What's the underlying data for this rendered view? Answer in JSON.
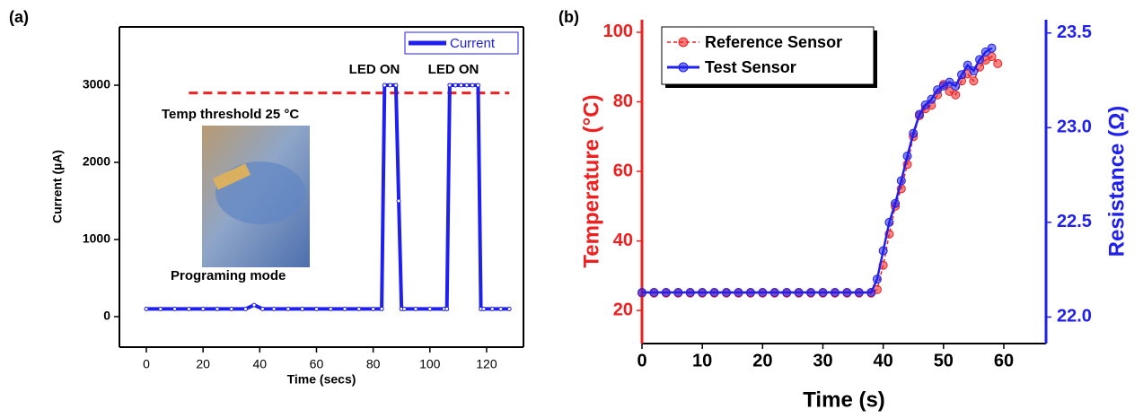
{
  "chart_data": [
    {
      "type": "line",
      "panel_label": "(a)",
      "x_label": "Time (secs)",
      "y_label": "Current (µA)",
      "xlim": [
        -9.5,
        133
      ],
      "ylim": [
        -395,
        3756
      ],
      "xticks": [
        0,
        20,
        40,
        60,
        80,
        100,
        120
      ],
      "yticks": [
        0,
        1000,
        2000,
        3000
      ],
      "series": [
        {
          "name": "Current",
          "color": "#2020ee",
          "x": [
            0,
            5,
            10,
            15,
            20,
            25,
            30,
            35,
            38,
            41,
            45,
            50,
            55,
            60,
            65,
            70,
            75,
            80,
            83,
            84,
            86,
            88,
            89,
            90,
            91,
            95,
            100,
            105,
            106,
            107,
            109,
            111,
            113,
            115,
            117,
            118,
            119,
            122,
            125,
            128
          ],
          "values": [
            100,
            100,
            100,
            100,
            100,
            100,
            100,
            100,
            150,
            100,
            100,
            100,
            100,
            100,
            100,
            100,
            100,
            100,
            100,
            3000,
            3000,
            3000,
            1500,
            100,
            100,
            100,
            100,
            100,
            100,
            3000,
            3000,
            3000,
            3000,
            3000,
            3000,
            100,
            100,
            100,
            100,
            100
          ]
        }
      ],
      "reference_line": {
        "value": 2900,
        "x": [
          15,
          128
        ],
        "color": "#ee2020"
      },
      "annotations": [
        "LED ON",
        "LED ON",
        "Temp threshold 25 °C",
        "Programing mode"
      ],
      "legend": "upper right"
    },
    {
      "type": "line",
      "panel_label": "(b)",
      "x_label": "Time (s)",
      "y_label": "Temperature (°C)",
      "y2_label": "Resistance (Ω)",
      "xlim": [
        0,
        67
      ],
      "ylim": [
        10.5,
        103.6
      ],
      "y2lim": [
        21.86,
        23.57
      ],
      "xticks": [
        0,
        10,
        20,
        30,
        40,
        50,
        60
      ],
      "yticks": [
        20,
        40,
        60,
        80,
        100
      ],
      "y2ticks": [
        {
          "value": 22,
          "label": "22.0"
        },
        {
          "value": 22.5,
          "label": "22.5"
        },
        {
          "value": 23,
          "label": "23.0"
        },
        {
          "value": 23.5,
          "label": "23.5"
        }
      ],
      "series": [
        {
          "name": "Reference Sensor",
          "color": "#ee2020",
          "x": [
            0,
            2,
            4,
            6,
            8,
            10,
            12,
            14,
            16,
            18,
            20,
            22,
            24,
            26,
            28,
            30,
            32,
            34,
            36,
            38,
            39,
            40,
            41,
            42,
            43,
            44,
            45,
            46,
            47,
            48,
            49,
            50,
            51,
            52,
            53,
            54,
            55,
            56,
            57,
            58,
            59
          ],
          "values": [
            25,
            25,
            25,
            25,
            25,
            25,
            25,
            25,
            25,
            25,
            25,
            25,
            25,
            25,
            25,
            25,
            25,
            25,
            25,
            25,
            26,
            33,
            42,
            50,
            55,
            62,
            70,
            76,
            78,
            79,
            82,
            85,
            83,
            82,
            86,
            88,
            86,
            90,
            92,
            93,
            91
          ]
        },
        {
          "name": "Test Sensor",
          "color": "#2020ee",
          "axis": "y2",
          "x": [
            0,
            2,
            4,
            6,
            8,
            10,
            12,
            14,
            16,
            18,
            20,
            22,
            24,
            26,
            28,
            30,
            32,
            34,
            36,
            38,
            39,
            40,
            41,
            42,
            43,
            44,
            45,
            46,
            47,
            48,
            49,
            50,
            51,
            52,
            53,
            54,
            55,
            56,
            57,
            58
          ],
          "values": [
            22.13,
            22.13,
            22.13,
            22.13,
            22.13,
            22.13,
            22.13,
            22.13,
            22.13,
            22.13,
            22.13,
            22.13,
            22.13,
            22.13,
            22.13,
            22.13,
            22.13,
            22.13,
            22.13,
            22.13,
            22.2,
            22.35,
            22.5,
            22.6,
            22.72,
            22.85,
            22.97,
            23.07,
            23.12,
            23.15,
            23.2,
            23.22,
            23.24,
            23.22,
            23.28,
            23.33,
            23.3,
            23.36,
            23.4,
            23.42
          ]
        }
      ],
      "legend": "upper left"
    }
  ]
}
